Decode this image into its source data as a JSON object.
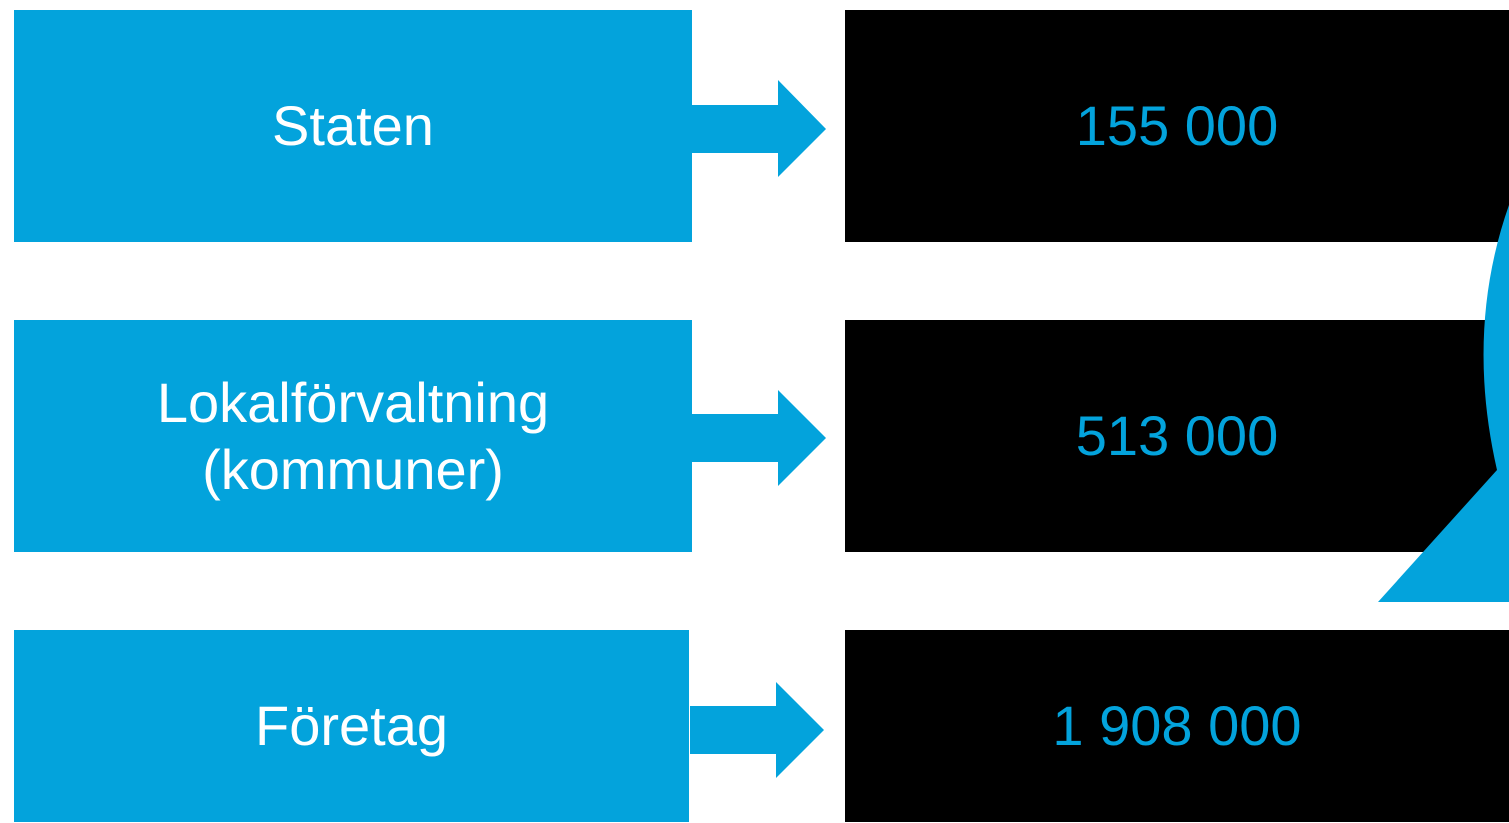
{
  "rows": [
    {
      "label": [
        "Staten"
      ],
      "value": "155 000"
    },
    {
      "label": [
        "Lokalförvaltning",
        "(kommuner)"
      ],
      "value": "513 000"
    },
    {
      "label": [
        "Företag"
      ],
      "value": "1 908 000"
    }
  ]
}
